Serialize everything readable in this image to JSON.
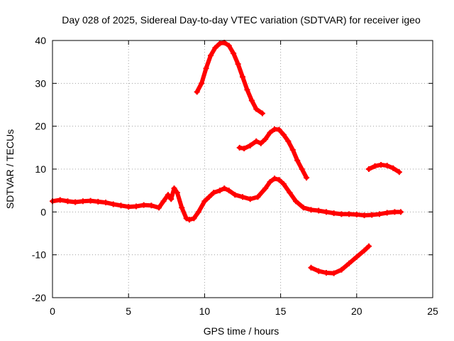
{
  "chart_data": {
    "type": "scatter",
    "title": "Day 028 of 2025, Sidereal Day-to-day VTEC variation (SDTVAR) for receiver igeo",
    "xlabel": "GPS time / hours",
    "ylabel": "SDTVAR / TECUs",
    "xlim": [
      0,
      25
    ],
    "ylim": [
      -20,
      40
    ],
    "x_ticks": [
      0,
      5,
      10,
      15,
      20,
      25
    ],
    "y_ticks": [
      -20,
      -10,
      0,
      10,
      20,
      30,
      40
    ],
    "grid": true,
    "marker": "+",
    "series_color": "#ff0000",
    "series": [
      {
        "name": "track-1",
        "x": [
          0.0,
          0.5,
          1.0,
          1.5,
          2.0,
          2.5,
          3.0,
          3.5,
          4.0,
          4.5,
          5.0,
          5.5,
          6.0,
          6.5,
          7.0,
          7.3,
          7.6,
          7.8,
          8.0,
          8.2,
          8.5,
          8.8,
          9.0,
          9.3,
          9.6,
          10.0,
          10.3,
          10.6,
          11.0,
          11.3,
          11.6,
          12.0,
          12.5,
          13.0,
          13.5,
          14.0,
          14.3,
          14.6,
          14.9,
          15.2,
          15.6,
          16.0,
          16.5,
          17.0,
          17.5,
          18.0,
          18.5,
          19.0,
          19.5,
          20.0,
          20.5,
          21.0,
          21.5,
          22.0,
          22.5,
          22.9
        ],
        "y": [
          2.5,
          2.8,
          2.5,
          2.3,
          2.5,
          2.6,
          2.4,
          2.2,
          1.8,
          1.5,
          1.2,
          1.3,
          1.6,
          1.5,
          1.0,
          2.5,
          4.0,
          3.0,
          5.5,
          4.5,
          1.0,
          -1.5,
          -1.8,
          -1.5,
          0.0,
          2.5,
          3.5,
          4.5,
          5.0,
          5.5,
          5.0,
          4.0,
          3.5,
          3.0,
          3.5,
          5.5,
          7.0,
          7.8,
          7.5,
          6.5,
          4.5,
          2.5,
          1.0,
          0.5,
          0.3,
          0.0,
          -0.3,
          -0.5,
          -0.5,
          -0.6,
          -0.8,
          -0.7,
          -0.5,
          -0.2,
          0.0,
          0.0
        ]
      },
      {
        "name": "track-2",
        "x": [
          9.5,
          9.8,
          10.1,
          10.4,
          10.7,
          11.0,
          11.3,
          11.6,
          11.9,
          12.2,
          12.5,
          12.8,
          13.1,
          13.4,
          13.8
        ],
        "y": [
          28.0,
          30.0,
          33.5,
          36.5,
          38.3,
          39.3,
          39.5,
          38.8,
          37.0,
          34.5,
          31.5,
          28.5,
          26.0,
          24.0,
          23.0
        ]
      },
      {
        "name": "track-3",
        "x": [
          12.3,
          12.6,
          13.0,
          13.4,
          13.7,
          14.0,
          14.3,
          14.6,
          14.9,
          15.2,
          15.5,
          15.8,
          16.1,
          16.4,
          16.7
        ],
        "y": [
          15.0,
          14.8,
          15.5,
          16.5,
          16.0,
          17.0,
          18.5,
          19.3,
          19.2,
          18.0,
          16.5,
          14.5,
          12.0,
          10.0,
          8.0
        ]
      },
      {
        "name": "track-4",
        "x": [
          17.0,
          17.5,
          18.0,
          18.5,
          19.0,
          19.5,
          20.0,
          20.5,
          20.8
        ],
        "y": [
          -13.0,
          -13.8,
          -14.2,
          -14.3,
          -13.5,
          -12.0,
          -10.5,
          -9.0,
          -8.0
        ]
      },
      {
        "name": "track-5",
        "x": [
          20.8,
          21.2,
          21.6,
          22.0,
          22.4,
          22.8
        ],
        "y": [
          10.0,
          10.7,
          11.0,
          10.8,
          10.2,
          9.3
        ]
      }
    ]
  }
}
